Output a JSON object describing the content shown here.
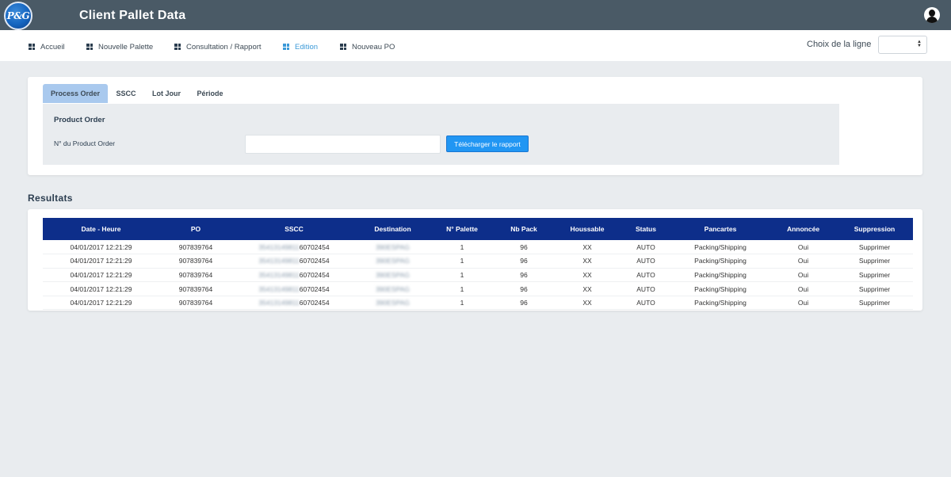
{
  "app": {
    "logo_text": "P&G",
    "title": "Client Pallet Data"
  },
  "nav": {
    "items": [
      {
        "label": "Accueil",
        "active": false
      },
      {
        "label": "Nouvelle Palette",
        "active": false
      },
      {
        "label": "Consultation / Rapport",
        "active": false
      },
      {
        "label": "Edition",
        "active": true
      },
      {
        "label": "Nouveau PO",
        "active": false
      }
    ],
    "line_label": "Choix de la ligne",
    "line_value": ""
  },
  "form": {
    "tabs": [
      {
        "label": "Process Order",
        "active": true
      },
      {
        "label": "SSCC",
        "active": false
      },
      {
        "label": "Lot Jour",
        "active": false
      },
      {
        "label": "Période",
        "active": false
      }
    ],
    "panel_title": "Product Order",
    "po_label": "N° du Product Order",
    "po_value": "",
    "download_label": "Télécharger le rapport"
  },
  "results": {
    "title": "Resultats",
    "columns": [
      "Date - Heure",
      "PO",
      "SSCC",
      "Destination",
      "N° Palette",
      "Nb Pack",
      "Houssable",
      "Status",
      "Pancartes",
      "Annoncée",
      "Suppression"
    ],
    "rows": [
      {
        "date": "04/01/2017 12:21:29",
        "po": "907839764",
        "sscc_hidden": "35413149811",
        "sscc_visible": "60702454",
        "destination": "390ESPAG",
        "palette": "1",
        "nb_pack": "96",
        "houssable": "XX",
        "status": "AUTO",
        "pancartes": "Packing/Shipping",
        "annoncee": "Oui",
        "suppression": "Supprimer"
      },
      {
        "date": "04/01/2017 12:21:29",
        "po": "907839764",
        "sscc_hidden": "35413149811",
        "sscc_visible": "60702454",
        "destination": "390ESPAG",
        "palette": "1",
        "nb_pack": "96",
        "houssable": "XX",
        "status": "AUTO",
        "pancartes": "Packing/Shipping",
        "annoncee": "Oui",
        "suppression": "Supprimer"
      },
      {
        "date": "04/01/2017 12:21:29",
        "po": "907839764",
        "sscc_hidden": "35413149811",
        "sscc_visible": "60702454",
        "destination": "390ESPAG",
        "palette": "1",
        "nb_pack": "96",
        "houssable": "XX",
        "status": "AUTO",
        "pancartes": "Packing/Shipping",
        "annoncee": "Oui",
        "suppression": "Supprimer"
      },
      {
        "date": "04/01/2017 12:21:29",
        "po": "907839764",
        "sscc_hidden": "35413149811",
        "sscc_visible": "60702454",
        "destination": "390ESPAG",
        "palette": "1",
        "nb_pack": "96",
        "houssable": "XX",
        "status": "AUTO",
        "pancartes": "Packing/Shipping",
        "annoncee": "Oui",
        "suppression": "Supprimer"
      },
      {
        "date": "04/01/2017 12:21:29",
        "po": "907839764",
        "sscc_hidden": "35413149811",
        "sscc_visible": "60702454",
        "destination": "390ESPAG",
        "palette": "1",
        "nb_pack": "96",
        "houssable": "XX",
        "status": "AUTO",
        "pancartes": "Packing/Shipping",
        "annoncee": "Oui",
        "suppression": "Supprimer"
      }
    ]
  },
  "colors": {
    "header_bg": "#4a5a66",
    "accent": "#3c9ad8",
    "table_header_bg": "#0d2e8a",
    "button_bg": "#2196f3"
  }
}
